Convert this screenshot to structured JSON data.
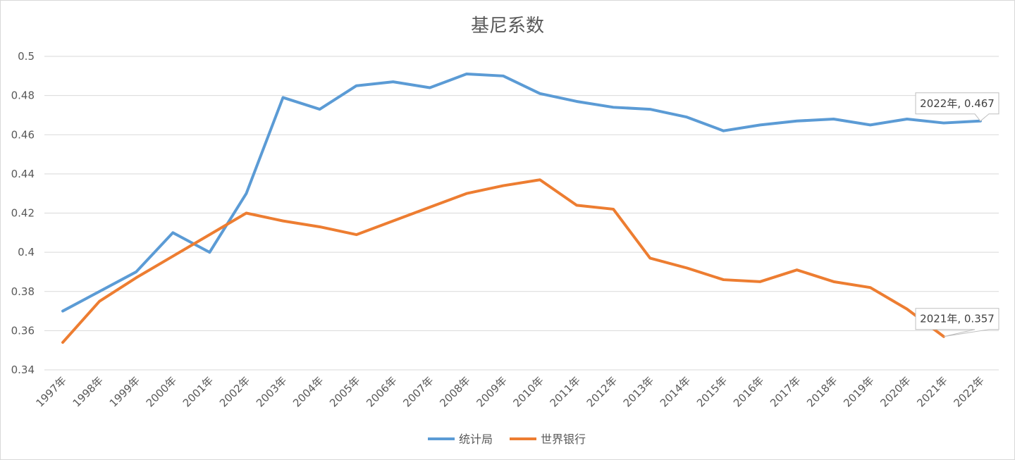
{
  "chart_data": {
    "type": "line",
    "title": "基尼系数",
    "xlabel": "",
    "ylabel": "",
    "categories": [
      "1997年",
      "1998年",
      "1999年",
      "2000年",
      "2001年",
      "2002年",
      "2003年",
      "2004年",
      "2005年",
      "2006年",
      "2007年",
      "2008年",
      "2009年",
      "2010年",
      "2011年",
      "2012年",
      "2013年",
      "2014年",
      "2015年",
      "2016年",
      "2017年",
      "2018年",
      "2019年",
      "2020年",
      "2021年",
      "2022年"
    ],
    "y_ticks": [
      "0.34",
      "0.36",
      "0.38",
      "0.4",
      "0.42",
      "0.44",
      "0.46",
      "0.48",
      "0.5"
    ],
    "ylim": [
      0.34,
      0.5
    ],
    "grid": true,
    "legend_position": "bottom",
    "series": [
      {
        "name": "统计局",
        "color": "#5b9bd5",
        "values": [
          0.37,
          0.38,
          0.39,
          0.41,
          0.4,
          0.43,
          0.479,
          0.473,
          0.485,
          0.487,
          0.484,
          0.491,
          0.49,
          0.481,
          0.477,
          0.474,
          0.473,
          0.469,
          0.462,
          0.465,
          0.467,
          0.468,
          0.465,
          0.468,
          0.466,
          0.467
        ]
      },
      {
        "name": "世界银行",
        "color": "#ed7d31",
        "values": [
          0.354,
          0.375,
          0.387,
          0.398,
          0.409,
          0.42,
          0.416,
          0.413,
          0.409,
          0.416,
          0.423,
          0.43,
          0.434,
          0.437,
          0.424,
          0.422,
          0.397,
          0.392,
          0.386,
          0.385,
          0.391,
          0.385,
          0.382,
          0.371,
          0.357,
          null
        ]
      }
    ],
    "annotations": [
      {
        "series": 0,
        "index": 25,
        "text": "2022年, 0.467"
      },
      {
        "series": 1,
        "index": 24,
        "text": "2021年, 0.357"
      }
    ]
  }
}
